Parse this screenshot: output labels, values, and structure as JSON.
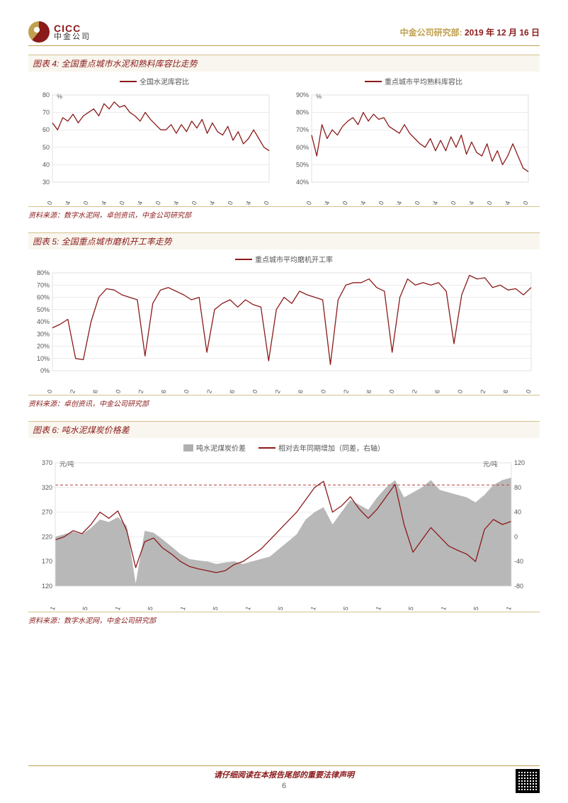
{
  "header": {
    "logo_en": "CICC",
    "logo_cn": "中金公司",
    "dept": "中金公司研究部:",
    "date": "2019 年 12 月 16 日"
  },
  "chart4": {
    "title": "图表 4: 全国重点城市水泥和熟料库容比走势",
    "source": "资料来源：数字水泥网，卓创资讯，中金公司研究部",
    "left": {
      "legend": "全国水泥库容比",
      "y_unit": "%",
      "ylim": [
        30,
        80
      ],
      "ytick_step": 10,
      "x_ticks": [
        "13/10",
        "14/04",
        "14/10",
        "15/04",
        "15/10",
        "16/04",
        "16/10",
        "17/04",
        "17/10",
        "18/04",
        "18/10",
        "19/04",
        "19/10"
      ],
      "series_color": "#8b1a1a",
      "values": [
        64,
        60,
        67,
        65,
        69,
        64,
        68,
        70,
        72,
        68,
        75,
        72,
        76,
        73,
        74,
        70,
        68,
        65,
        70,
        66,
        63,
        60,
        60,
        63,
        58,
        63,
        59,
        65,
        61,
        66,
        58,
        64,
        59,
        57,
        62,
        54,
        59,
        52,
        55,
        60,
        55,
        50,
        48
      ]
    },
    "right": {
      "legend": "重点城市平均熟料库容比",
      "y_unit": "%",
      "ylim": [
        40,
        90
      ],
      "ytick_step": 10,
      "x_ticks": [
        "13/10",
        "14/04",
        "14/10",
        "15/04",
        "15/10",
        "16/04",
        "16/10",
        "17/04",
        "17/10",
        "18/04",
        "18/10",
        "19/04",
        "19/10"
      ],
      "series_color": "#8b1a1a",
      "values": [
        67,
        55,
        73,
        65,
        70,
        67,
        72,
        75,
        77,
        73,
        80,
        75,
        79,
        76,
        77,
        72,
        70,
        68,
        73,
        68,
        65,
        62,
        60,
        65,
        58,
        64,
        58,
        66,
        60,
        67,
        56,
        63,
        57,
        55,
        62,
        52,
        58,
        50,
        55,
        62,
        55,
        48,
        46
      ]
    }
  },
  "chart5": {
    "title": "图表 5: 全国重点城市磨机开工率走势",
    "source": "资料来源：卓创资讯，中金公司研究部",
    "legend": "重点城市平均磨机开工率",
    "y_unit": "%",
    "ylim": [
      0,
      80
    ],
    "ytick_step": 10,
    "x_ticks": [
      "12/10",
      "13/02",
      "13/06",
      "13/10",
      "14/02",
      "14/06",
      "14/10",
      "15/02",
      "15/06",
      "15/10",
      "16/02",
      "16/06",
      "16/10",
      "17/02",
      "17/06",
      "17/10",
      "18/02",
      "18/06",
      "18/10",
      "19/02",
      "19/06",
      "19/10"
    ],
    "series_color": "#8b1a1a",
    "values": [
      35,
      38,
      42,
      10,
      9,
      40,
      60,
      67,
      66,
      62,
      60,
      58,
      12,
      55,
      66,
      68,
      65,
      62,
      58,
      60,
      15,
      50,
      55,
      58,
      52,
      58,
      54,
      52,
      8,
      50,
      60,
      55,
      65,
      62,
      60,
      58,
      5,
      58,
      70,
      72,
      72,
      75,
      68,
      65,
      15,
      60,
      75,
      70,
      72,
      70,
      72,
      65,
      22,
      62,
      78,
      75,
      76,
      68,
      70,
      66,
      67,
      62,
      68
    ]
  },
  "chart6": {
    "title": "图表 6: 吨水泥煤炭价格差",
    "source": "资料来源：数字水泥网，中金公司研究部",
    "legend_area": "吨水泥煤炭价差",
    "legend_line": "相对去年同期增加（同差，右轴）",
    "y_unit_left": "元/吨",
    "y_unit_right": "元/吨",
    "ylim_left": [
      120,
      370
    ],
    "ytick_left": [
      120,
      170,
      220,
      270,
      320,
      370
    ],
    "ylim_right": [
      -80,
      120
    ],
    "ytick_right": [
      -80,
      -40,
      0,
      40,
      80,
      120
    ],
    "x_ticks": [
      "12/11",
      "13/05",
      "13/11",
      "14/05",
      "14/11",
      "15/05",
      "15/11",
      "16/05",
      "16/11",
      "17/05",
      "17/11",
      "18/05",
      "18/11",
      "19/05",
      "19/11"
    ],
    "area_color": "#b0b0b0",
    "line_color": "#8b1a1a",
    "ref_line_y_left": 325,
    "area_values": [
      220,
      225,
      230,
      225,
      238,
      255,
      250,
      260,
      242,
      125,
      232,
      228,
      215,
      200,
      185,
      175,
      172,
      170,
      165,
      168,
      170,
      165,
      170,
      175,
      180,
      195,
      210,
      225,
      255,
      270,
      280,
      245,
      270,
      295,
      285,
      275,
      300,
      320,
      335,
      300,
      310,
      320,
      335,
      315,
      310,
      305,
      300,
      290,
      305,
      325,
      335,
      340
    ],
    "line_values": [
      -5,
      0,
      10,
      5,
      20,
      40,
      30,
      42,
      10,
      -50,
      -8,
      -2,
      -18,
      -28,
      -40,
      -48,
      -52,
      -55,
      -58,
      -55,
      -45,
      -40,
      -30,
      -20,
      -5,
      10,
      25,
      40,
      60,
      80,
      90,
      40,
      50,
      65,
      45,
      30,
      45,
      65,
      85,
      20,
      -25,
      -5,
      15,
      0,
      -15,
      -22,
      -28,
      -40,
      12,
      28,
      20,
      25
    ]
  },
  "footer": {
    "disclaimer": "请仔细阅读在本报告尾部的重要法律声明",
    "page": "6"
  }
}
